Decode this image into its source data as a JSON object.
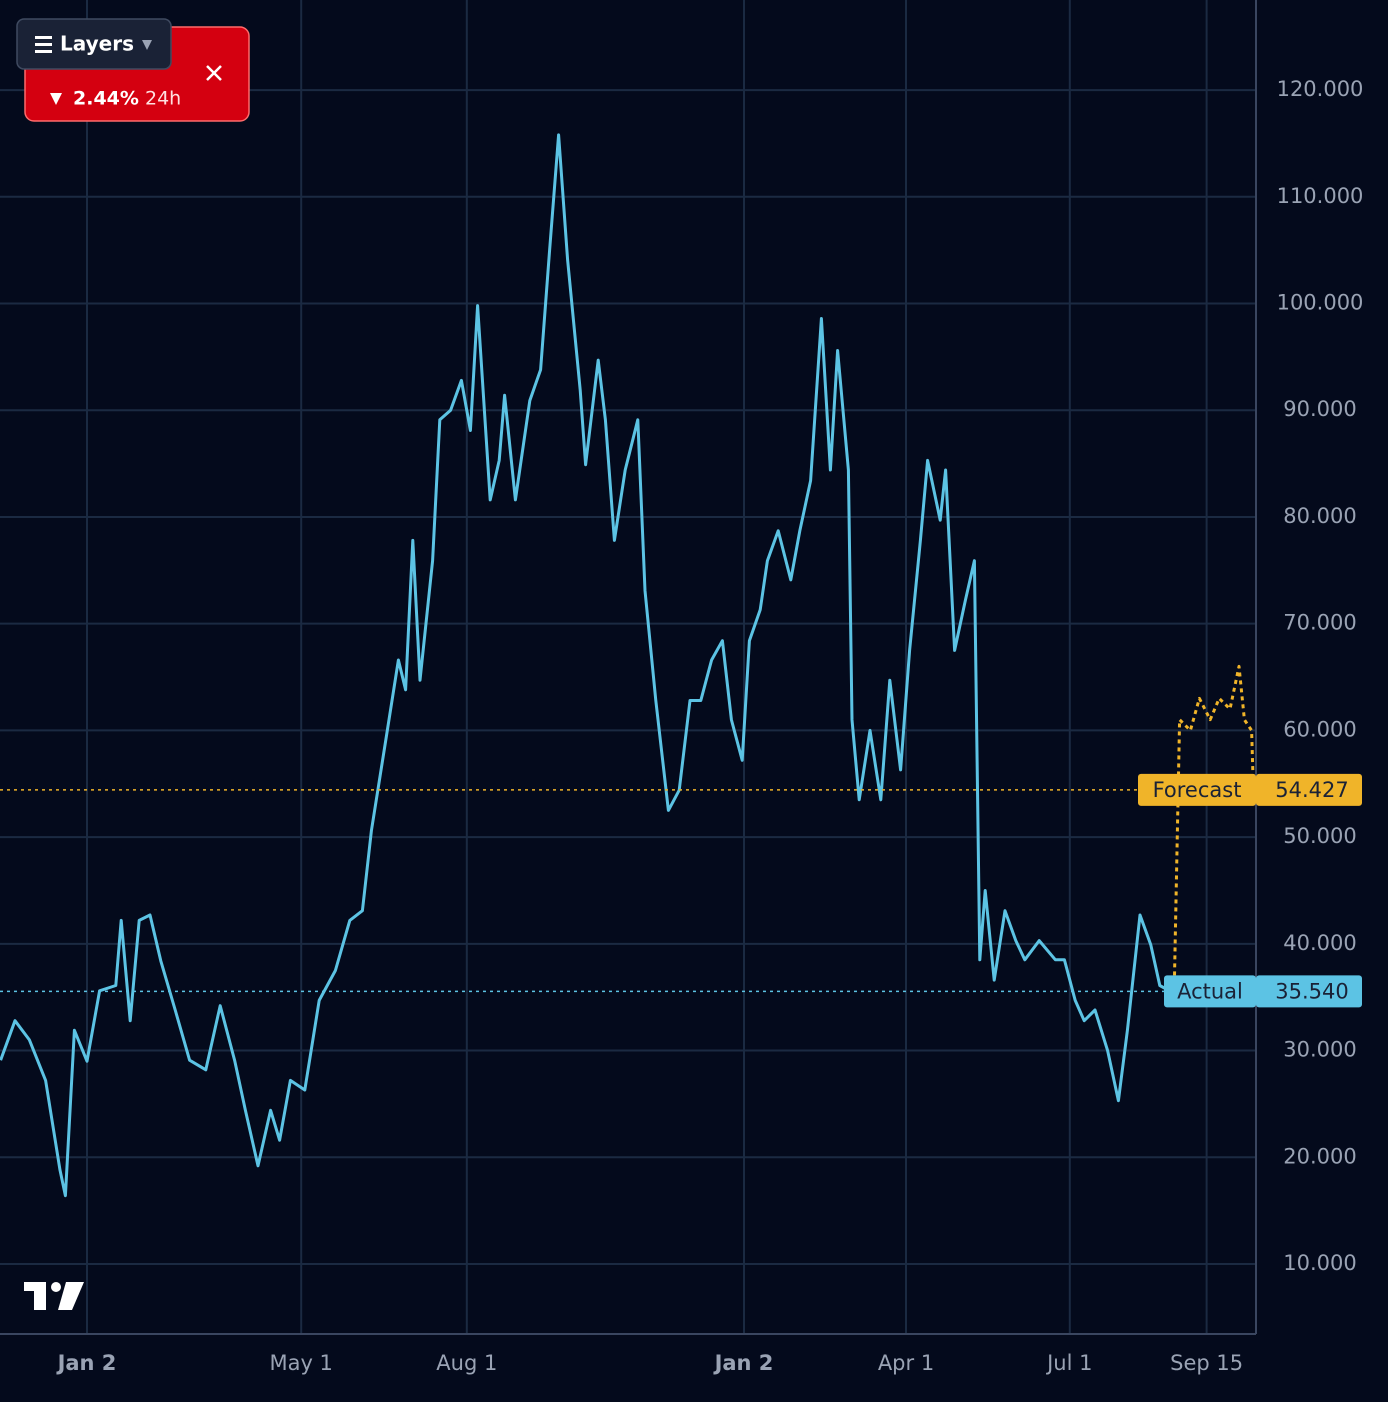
{
  "chart_data": {
    "type": "line",
    "xticks": [
      {
        "value": 0,
        "label": "Jan 2"
      },
      {
        "value": 119,
        "label": "May 1"
      },
      {
        "value": 211,
        "label": "Aug 1"
      },
      {
        "value": 365,
        "label": "Jan 2"
      },
      {
        "value": 455,
        "label": "Apr 1"
      },
      {
        "value": 546,
        "label": "Jul 1"
      },
      {
        "value": 622,
        "label": "Sep 15"
      }
    ],
    "xlim": [
      -48.33,
      649.44
    ],
    "ylim": [
      3.44,
      128.44
    ],
    "yticks": [
      {
        "value": 10,
        "label": "10.000"
      },
      {
        "value": 20,
        "label": "20.000"
      },
      {
        "value": 30,
        "label": "30.000"
      },
      {
        "value": 40,
        "label": "40.000"
      },
      {
        "value": 50,
        "label": "50.000"
      },
      {
        "value": 60,
        "label": "60.000"
      },
      {
        "value": 70,
        "label": "70.000"
      },
      {
        "value": 80,
        "label": "80.000"
      },
      {
        "value": 90,
        "label": "90.000"
      },
      {
        "value": 100,
        "label": "100.000"
      },
      {
        "value": 110,
        "label": "110.000"
      },
      {
        "value": 120,
        "label": "120.000"
      }
    ],
    "grid": true,
    "series": [
      {
        "name": "Actual",
        "color": "#5cc3e4",
        "tag_label": "35.540",
        "x": [
          -48,
          -40,
          -32,
          -23,
          -15,
          -12,
          -7,
          0,
          7,
          16,
          19,
          24,
          29,
          35,
          41,
          49,
          57,
          66,
          74,
          82,
          88,
          95,
          102,
          107,
          113,
          121,
          129,
          138,
          146,
          153,
          158,
          166,
          173,
          177,
          181,
          185,
          192,
          196,
          202,
          208,
          213,
          217,
          224,
          229,
          232,
          238,
          246,
          252,
          257,
          262,
          267,
          274,
          277,
          284,
          288,
          293,
          299,
          306,
          310,
          316,
          323,
          329,
          335,
          341,
          347,
          353,
          358,
          364,
          368,
          374,
          378,
          384,
          391,
          396,
          402,
          408,
          413,
          417,
          423,
          425,
          429,
          435,
          441,
          446,
          452,
          457,
          463,
          467,
          474,
          477,
          482,
          488,
          493,
          496,
          499,
          504,
          510,
          516,
          521,
          529,
          538,
          543,
          549,
          554,
          560,
          567,
          573,
          578,
          585,
          591,
          596,
          602
        ],
        "values": [
          29.1,
          32.8,
          31,
          27.2,
          18.8,
          16.4,
          31.9,
          29,
          35.6,
          36.1,
          42.2,
          32.8,
          42.2,
          42.7,
          38.4,
          33.8,
          29.1,
          28.2,
          34.2,
          29.1,
          24.4,
          19.2,
          24.4,
          21.6,
          27.2,
          26.3,
          34.7,
          37.5,
          42.2,
          43.1,
          50.6,
          59.1,
          66.6,
          63.8,
          77.8,
          64.7,
          75.9,
          89.1,
          90,
          92.8,
          88.1,
          99.8,
          81.6,
          85.3,
          91.4,
          81.6,
          90.9,
          93.8,
          105,
          115.8,
          104.1,
          91.9,
          84.9,
          94.7,
          89.1,
          77.8,
          84.4,
          89.1,
          73.1,
          62.8,
          52.5,
          54.4,
          62.8,
          62.8,
          66.6,
          68.4,
          61,
          57.2,
          68.4,
          71.3,
          75.9,
          78.7,
          74.1,
          78.7,
          83.4,
          98.6,
          84.4,
          95.6,
          84.4,
          61,
          53.5,
          60,
          53.5,
          64.7,
          56.3,
          67.5,
          77.8,
          85.3,
          79.7,
          84.4,
          67.5,
          72.2,
          75.9,
          38.5,
          45,
          36.6,
          43.1,
          40.3,
          38.5,
          40.3,
          38.5,
          38.5,
          34.7,
          32.8,
          33.8,
          30,
          25.3,
          31.9,
          42.7,
          39.9,
          36.1,
          35.54
        ]
      },
      {
        "name": "Forecast",
        "color": "#f0b429",
        "tag_label": "54.427",
        "x": [
          604,
          607,
          613,
          618,
          624,
          629,
          635,
          640,
          643,
          647,
          648
        ],
        "values": [
          35.54,
          61,
          60,
          63,
          61,
          63,
          62,
          66,
          61,
          60,
          54.427
        ]
      }
    ]
  },
  "ui": {
    "layers_button": "Layers",
    "change": "2.44%",
    "period": "24h"
  }
}
